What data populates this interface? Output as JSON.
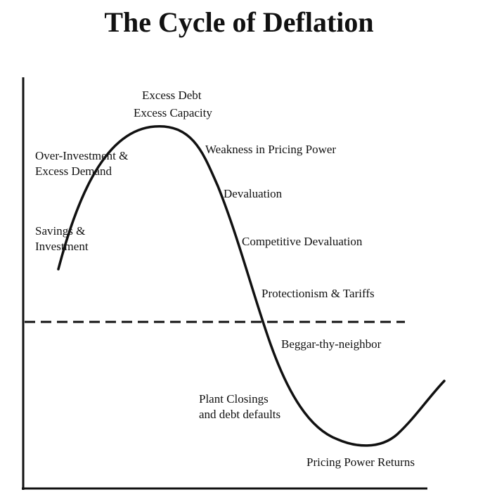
{
  "title": "The Cycle of Deflation",
  "labels": {
    "excess_debt": "Excess Debt",
    "excess_capacity": "Excess Capacity",
    "over_investment": "Over-Investment &",
    "excess_demand": "Excess Demand",
    "savings": "Savings &",
    "investment": "Investment",
    "weakness": "Weakness in Pricing Power",
    "devaluation": "Devaluation",
    "competitive": "Competitive Devaluation",
    "protectionism": "Protectionism & Tariffs",
    "beggar": "Beggar-thy-neighbor",
    "plant_closings": "Plant Closings",
    "debt_defaults": "and debt defaults",
    "pricing_returns": "Pricing Power Returns"
  }
}
